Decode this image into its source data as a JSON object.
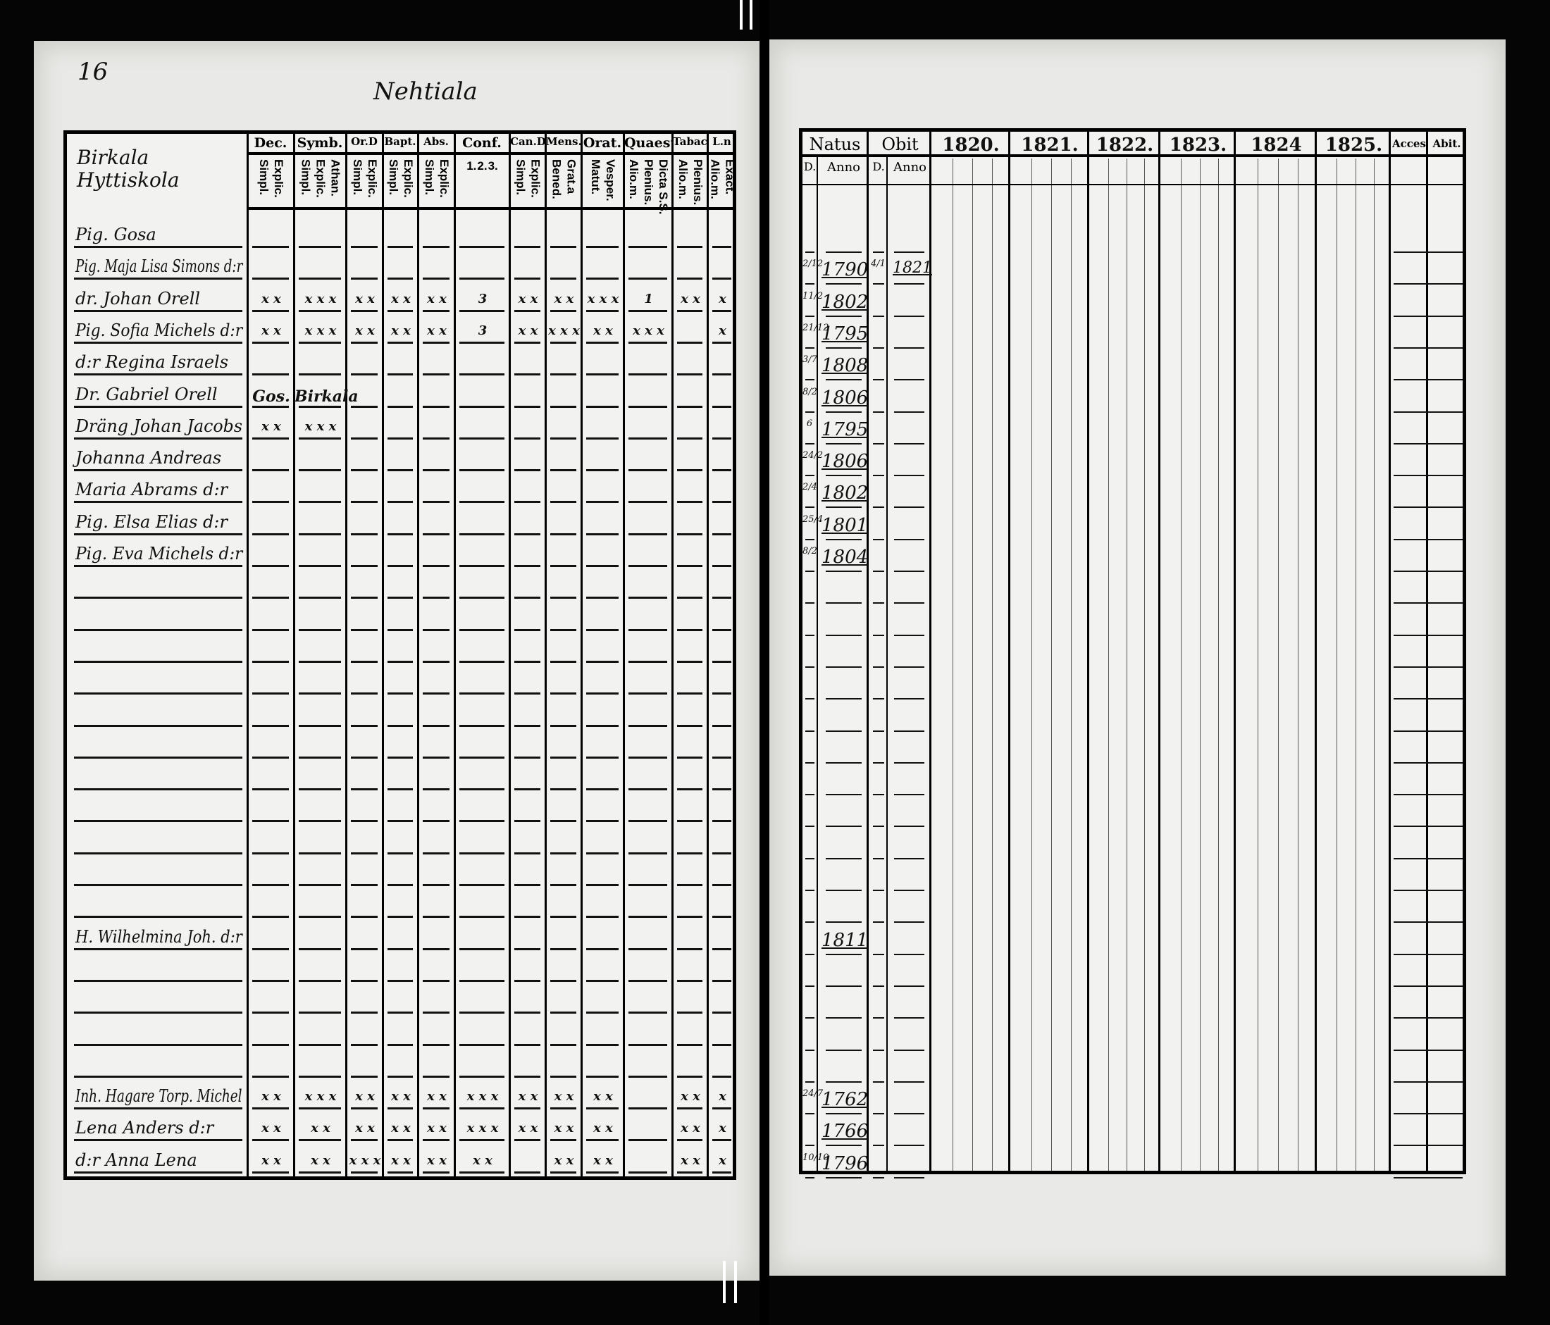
{
  "left_page": {
    "page_number": "16",
    "village": "Nehtiala",
    "name_header": "Birkala Hyttiskola",
    "columns": [
      {
        "title": "Dec.",
        "sub": [
          "Explic.",
          "Simpl."
        ]
      },
      {
        "title": "Symb.",
        "sub": [
          "Athan.",
          "Explic.",
          "Simpl."
        ]
      },
      {
        "title": "Or.D",
        "sub": [
          "Explic.",
          "Simpl."
        ]
      },
      {
        "title": "Bapt.",
        "sub": [
          "Explic.",
          "Simpl."
        ]
      },
      {
        "title": "Abs.",
        "sub": [
          "Explic.",
          "Simpl."
        ]
      },
      {
        "title": "Conf.",
        "sub": [
          "3.",
          "2.",
          "1."
        ]
      },
      {
        "title": "Can.D",
        "sub": [
          "Explic.",
          "Simpl."
        ]
      },
      {
        "title": "Mens.",
        "sub": [
          "Grat.a",
          "Bened."
        ]
      },
      {
        "title": "Orat.",
        "sub": [
          "Vesper.",
          "Matut."
        ]
      },
      {
        "title": "Quaest.",
        "sub": [
          "Dicta S.S.",
          "Plenius.",
          "Alio.m."
        ]
      },
      {
        "title": "Tabac",
        "sub": [
          "Plenius.",
          "Alio.m."
        ]
      },
      {
        "title": "L.n",
        "sub": [
          "Exact.",
          "Alio.m."
        ]
      }
    ]
  },
  "right_page": {
    "natus": {
      "title": "Natus",
      "d": "D.",
      "anno": "Anno"
    },
    "obit": {
      "title": "Obit",
      "d": "D.",
      "anno": "Anno"
    },
    "years": [
      "1820.",
      "1821.",
      "1822.",
      "1823.",
      "1824",
      "1825."
    ],
    "accessit": "Acces.",
    "abiit": "Abit."
  },
  "rows": [
    {
      "name": "Pig. Gosa",
      "marks": [],
      "natus_d": "",
      "natus_anno": "",
      "obit_d": "",
      "obit_anno": ""
    },
    {
      "name": "Pig. Maja Lisa Simons d:r",
      "marks": [],
      "natus_d": "2/12",
      "natus_anno": "1790",
      "obit_d": "4/1",
      "obit_anno": "1821"
    },
    {
      "name": "dr. Johan Orell",
      "marks": [
        "x x",
        "x x x",
        "x x",
        "x x",
        "x x",
        "3",
        "x x",
        "x x",
        "x x x",
        "1",
        "x x",
        "x"
      ],
      "natus_d": "11/2",
      "natus_anno": "1802",
      "obit_d": "",
      "obit_anno": ""
    },
    {
      "name": "Pig. Sofia Michels d:r",
      "marks": [
        "x x",
        "x x x",
        "x x",
        "x x",
        "x x",
        "3",
        "x x",
        "x x x",
        "x x",
        "x x x",
        "",
        "x"
      ],
      "natus_d": "21/12",
      "natus_anno": "1795",
      "obit_d": "",
      "obit_anno": ""
    },
    {
      "name": "d:r Regina Israels",
      "marks": [],
      "natus_d": "3/7",
      "natus_anno": "1808",
      "obit_d": "",
      "obit_anno": ""
    },
    {
      "name": "Dr. Gabriel Orell",
      "marks": [
        "Gos.",
        "Birkala"
      ],
      "natus_d": "8/2",
      "natus_anno": "1806",
      "obit_d": "",
      "obit_anno": ""
    },
    {
      "name": "Dräng Johan Jacobs",
      "marks": [
        "x x",
        "x x x"
      ],
      "natus_d": "6",
      "natus_anno": "1795",
      "obit_d": "",
      "obit_anno": ""
    },
    {
      "name": "Johanna Andreas",
      "marks": [],
      "natus_d": "24/2",
      "natus_anno": "1806",
      "obit_d": "",
      "obit_anno": ""
    },
    {
      "name": "Maria Abrams d:r",
      "marks": [],
      "natus_d": "2/4",
      "natus_anno": "1802",
      "obit_d": "",
      "obit_anno": ""
    },
    {
      "name": "Pig. Elsa Elias d:r",
      "marks": [],
      "natus_d": "25/4",
      "natus_anno": "1801",
      "obit_d": "",
      "obit_anno": ""
    },
    {
      "name": "Pig. Eva Michels d:r",
      "marks": [],
      "natus_d": "8/2",
      "natus_anno": "1804",
      "obit_d": "",
      "obit_anno": ""
    },
    {
      "name": "",
      "marks": []
    },
    {
      "name": "",
      "marks": []
    },
    {
      "name": "",
      "marks": []
    },
    {
      "name": "",
      "marks": []
    },
    {
      "name": "",
      "marks": []
    },
    {
      "name": "",
      "marks": []
    },
    {
      "name": "",
      "marks": []
    },
    {
      "name": "",
      "marks": []
    },
    {
      "name": "",
      "marks": []
    },
    {
      "name": "",
      "marks": []
    },
    {
      "name": "",
      "marks": []
    },
    {
      "name": "H. Wilhelmina Joh. d:r",
      "marks": [],
      "natus_d": "",
      "natus_anno": "1811",
      "obit_d": "",
      "obit_anno": ""
    },
    {
      "name": "",
      "marks": []
    },
    {
      "name": "",
      "marks": []
    },
    {
      "name": "",
      "marks": []
    },
    {
      "name": "",
      "marks": []
    },
    {
      "name": "Inh. Hagare Torp. Michel",
      "marks": [
        "x x",
        "x x x",
        "x x",
        "x x",
        "x x",
        "x x x",
        "x x",
        "x x",
        "x x",
        "",
        "x x",
        "x"
      ],
      "natus_d": "24/7",
      "natus_anno": "1762",
      "obit_d": "",
      "obit_anno": ""
    },
    {
      "name": "Lena Anders d:r",
      "marks": [
        "x x",
        "x x",
        "x x",
        "x x",
        "x x",
        "x x x",
        "x x",
        "x x",
        "x x",
        "",
        "x x",
        "x"
      ],
      "natus_d": "",
      "natus_anno": "1766",
      "obit_d": "",
      "obit_anno": ""
    },
    {
      "name": "d:r Anna Lena",
      "marks": [
        "x x",
        "x x",
        "x x x",
        "x x",
        "x x",
        "x x",
        "",
        "x x",
        "x x",
        "",
        "x x",
        "x"
      ],
      "natus_d": "10/10",
      "natus_anno": "1796",
      "obit_d": "",
      "obit_anno": ""
    }
  ]
}
